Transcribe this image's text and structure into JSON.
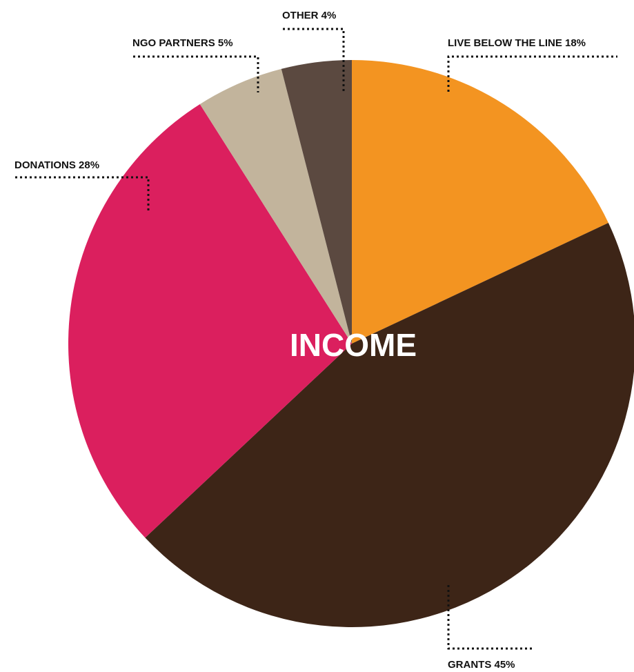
{
  "chart_data": {
    "type": "pie",
    "title": "INCOME",
    "unit": "%",
    "slices": [
      {
        "name": "LIVE BELOW THE LINE",
        "value": 18,
        "label": "LIVE BELOW THE LINE 18%",
        "color": "#F39421"
      },
      {
        "name": "GRANTS",
        "value": 45,
        "label": "GRANTS 45%",
        "color": "#3D2517"
      },
      {
        "name": "DONATIONS",
        "value": 28,
        "label": "DONATIONS 28%",
        "color": "#DB1F5E"
      },
      {
        "name": "NGO PARTNERS",
        "value": 5,
        "label": "NGO PARTNERS 5%",
        "color": "#C2B49C"
      },
      {
        "name": "OTHER",
        "value": 4,
        "label": "OTHER 4%",
        "color": "#5B4940"
      }
    ]
  }
}
